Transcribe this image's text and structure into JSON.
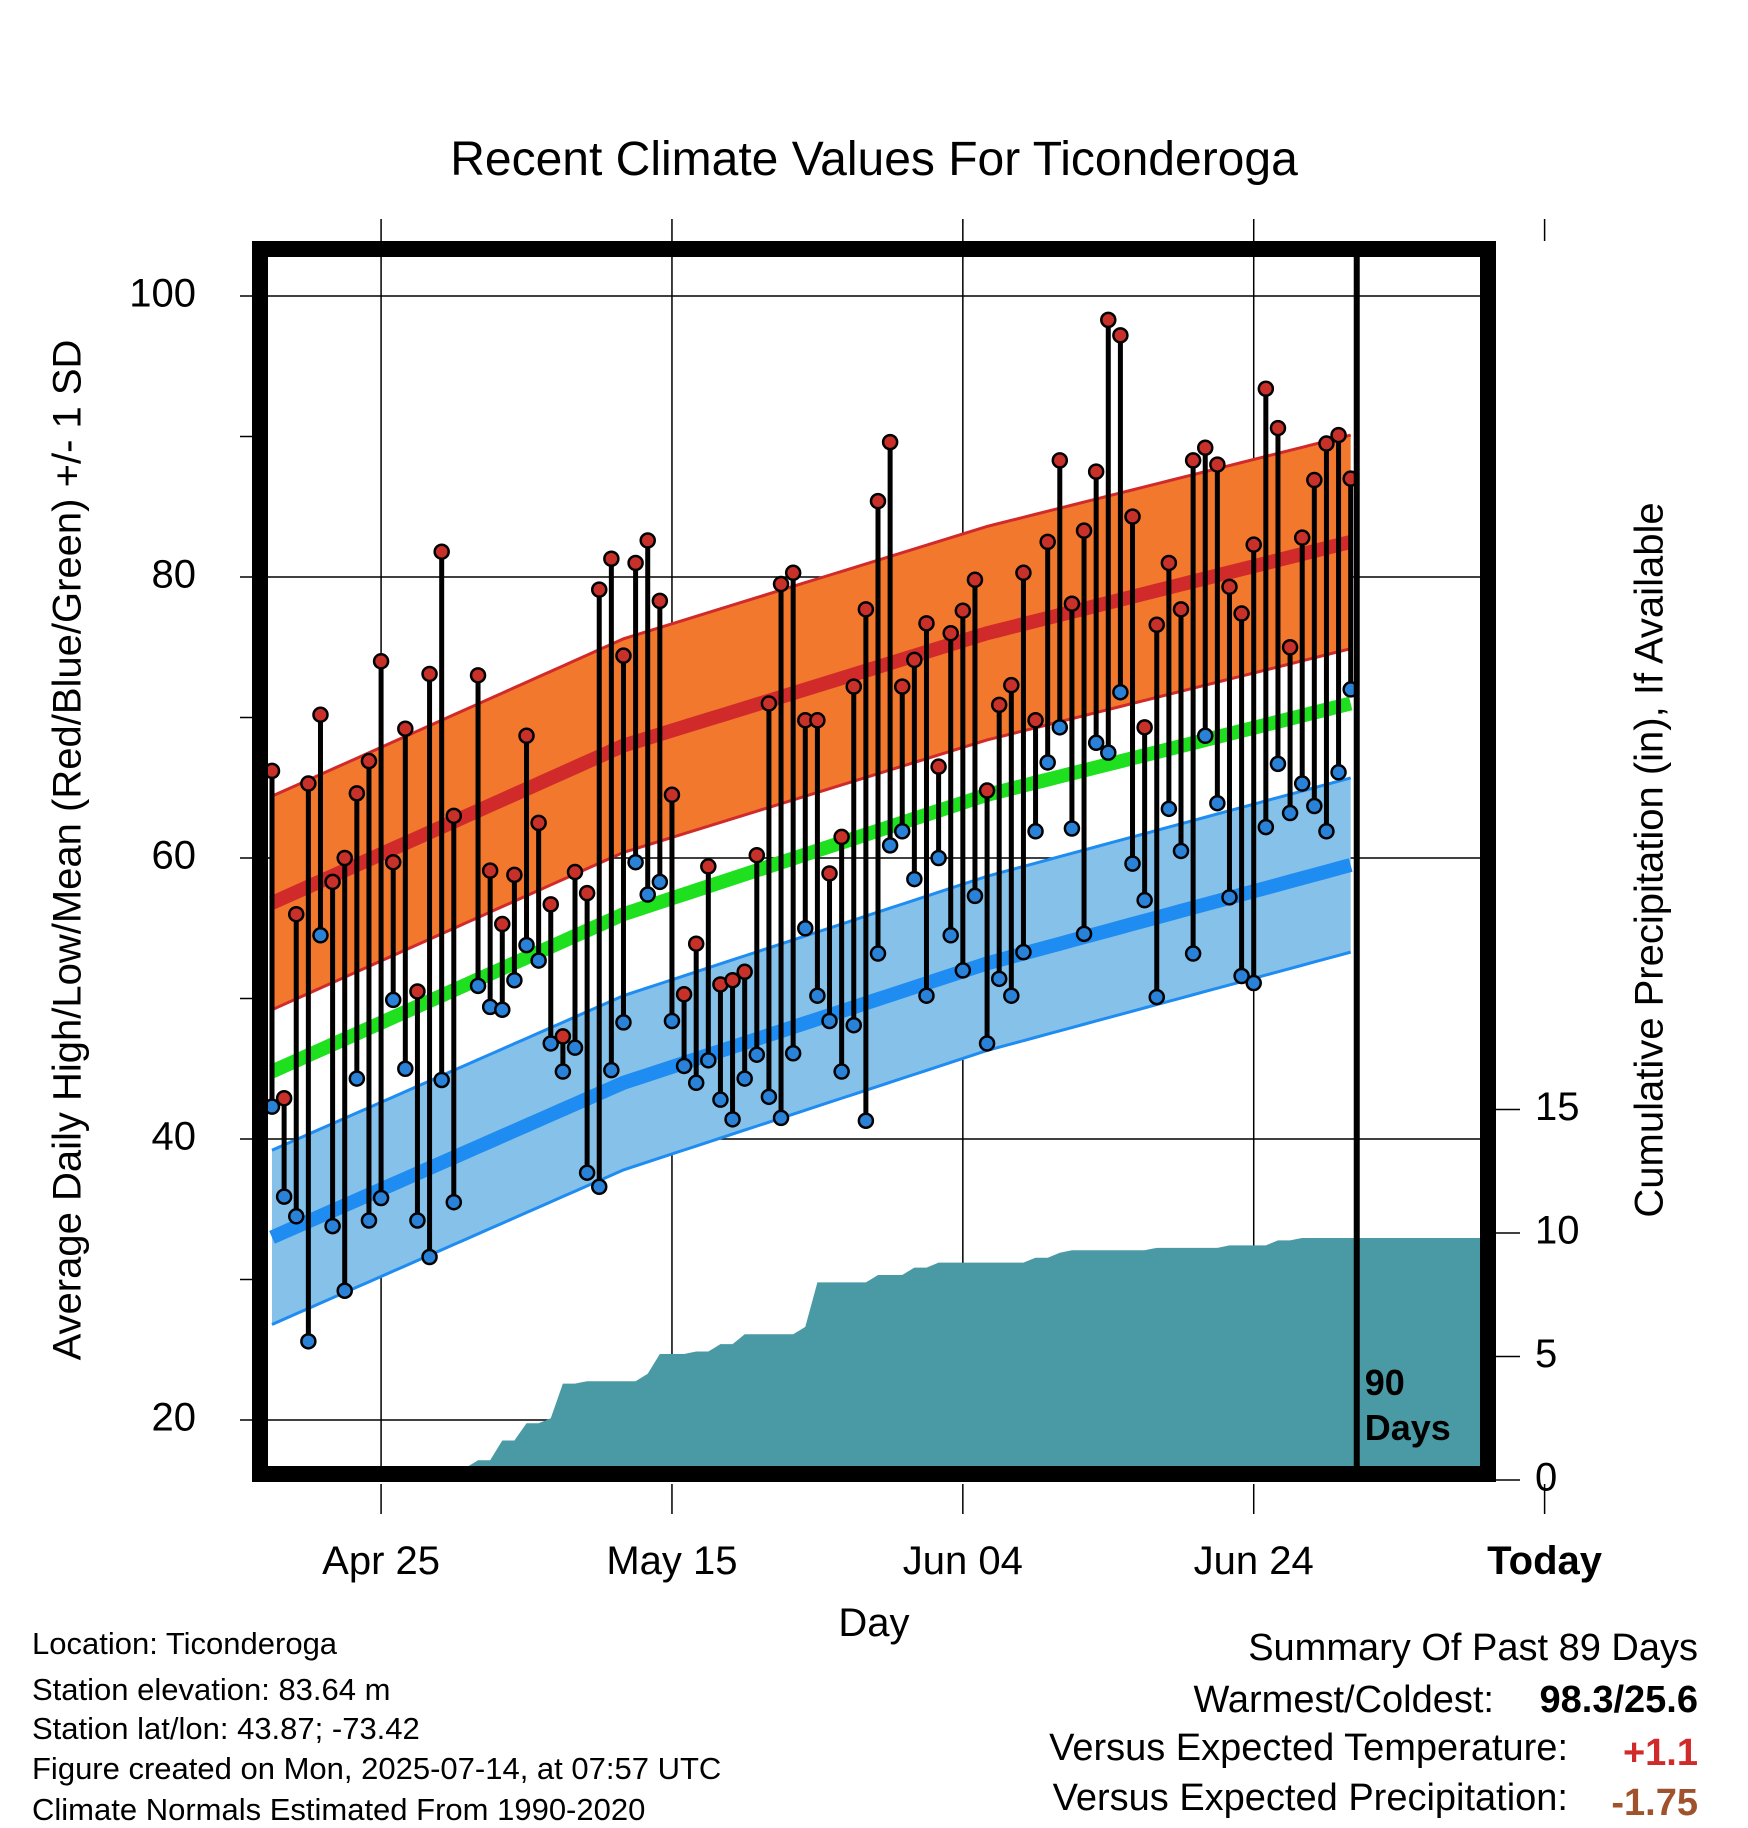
{
  "chart_data": {
    "type": "line",
    "title": "Recent Climate Values For Ticonderoga",
    "xlabel": "Day",
    "ylabel": "Average Daily High/Low/Mean (Red/Blue/Green) +/- 1 SD",
    "ylabel_right": "Cumulative Precipitation (in), If Available",
    "x_ticks": [
      "Apr 25",
      "May 15",
      "Jun 04",
      "Jun 24",
      "Today"
    ],
    "y_ticks": [
      "20",
      "40",
      "60",
      "80",
      "100"
    ],
    "y_range": [
      16,
      104
    ],
    "y2_ticks": [
      "0",
      "5",
      "10",
      "15"
    ],
    "y2_range": [
      0,
      15
    ],
    "grid": true,
    "days_annotation": "90\nDays",
    "normals": {
      "high": {
        "x": [
          1,
          30,
          60,
          90,
          100
        ],
        "y": [
          56.8,
          68,
          76,
          82.5,
          82.5
        ]
      },
      "low": {
        "x": [
          1,
          30,
          60,
          90,
          100
        ],
        "y": [
          33,
          44,
          52.5,
          59.5,
          59.5
        ]
      },
      "mean": {
        "x": [
          1,
          30,
          60,
          90,
          100
        ],
        "y": [
          44.8,
          56,
          64.5,
          71,
          71
        ]
      },
      "high_sd": 7.6,
      "low_sd": 6.2
    },
    "daily_high": [
      66.2,
      42.9,
      56,
      65.3,
      70.2,
      58.3,
      60,
      64.6,
      66.9,
      74,
      59.7,
      69.2,
      50.5,
      73.1,
      81.8,
      63,
      null,
      73,
      59.1,
      55.3,
      58.8,
      68.7,
      62.5,
      56.7,
      47.3,
      59,
      57.5,
      79.1,
      81.3,
      74.4,
      81,
      82.6,
      78.3,
      64.5,
      50.3,
      53.9,
      59.4,
      51,
      51.3,
      51.9,
      60.2,
      71,
      79.5,
      80.3,
      69.8,
      69.8,
      58.9,
      61.5,
      72.2,
      77.7,
      85.4,
      89.6,
      72.2,
      74.1,
      76.7,
      66.5,
      76,
      77.6,
      79.8,
      64.8,
      70.9,
      72.3,
      80.3,
      69.8,
      82.5,
      88.3,
      78.1,
      83.3,
      87.5,
      98.3,
      97.2,
      84.3,
      69.3,
      76.6,
      81,
      77.7,
      88.3,
      89.2,
      88,
      79.3,
      77.4,
      82.3,
      93.4,
      90.6,
      75,
      82.8,
      86.9,
      89.5,
      90.1,
      87
    ],
    "daily_low": [
      42.3,
      35.9,
      34.5,
      25.6,
      54.5,
      33.8,
      29.2,
      44.3,
      34.2,
      35.8,
      49.9,
      45,
      34.2,
      31.6,
      44.2,
      35.5,
      null,
      50.9,
      49.4,
      49.2,
      51.3,
      53.8,
      52.7,
      46.8,
      44.8,
      46.5,
      37.6,
      36.6,
      44.9,
      48.3,
      59.7,
      57.4,
      58.3,
      48.4,
      45.2,
      44,
      45.6,
      42.8,
      41.4,
      44.3,
      46,
      43,
      41.5,
      46.1,
      55,
      50.2,
      48.4,
      44.8,
      48.1,
      41.3,
      53.2,
      60.9,
      61.9,
      58.5,
      50.2,
      60,
      54.5,
      52,
      57.3,
      46.8,
      51.4,
      50.2,
      53.3,
      61.9,
      66.8,
      69.3,
      62.1,
      54.6,
      68.2,
      67.5,
      71.8,
      59.6,
      57,
      50.1,
      63.5,
      60.5,
      53.2,
      68.7,
      63.9,
      57.2,
      51.6,
      51.1,
      62.2,
      66.7,
      63.2,
      65.3,
      63.7,
      61.9,
      66.1,
      72
    ]
  },
  "info": {
    "location": "Location: Ticonderoga",
    "elevation": "Station elevation: 83.64 m",
    "latlon": "Station lat/lon: 43.87; -73.42",
    "created": "Figure created on Mon, 2025-07-14, at 07:57 UTC",
    "normals": "Climate Normals Estimated From 1990-2020"
  },
  "summary": {
    "heading": "Summary Of Past 89 Days",
    "warm_cold_label": "Warmest/Coldest:",
    "warm_cold_value": "98.3/25.6",
    "temp_label": "Versus Expected Temperature:",
    "temp_value": "+1.1",
    "precip_label": "Versus Expected Precipitation:",
    "precip_value": "-1.75"
  },
  "colors": {
    "high_band": "#f2782e",
    "high_line": "#d12a2a",
    "low_band": "#85c1e9",
    "low_line": "#1e8cf0",
    "mean_line": "#1ee01e",
    "precip_fill": "#4a9aa5",
    "high_dot": "#c8302a",
    "low_dot": "#2a82d8",
    "temp_value": "#d12a2a",
    "precip_value": "#a0522d"
  }
}
